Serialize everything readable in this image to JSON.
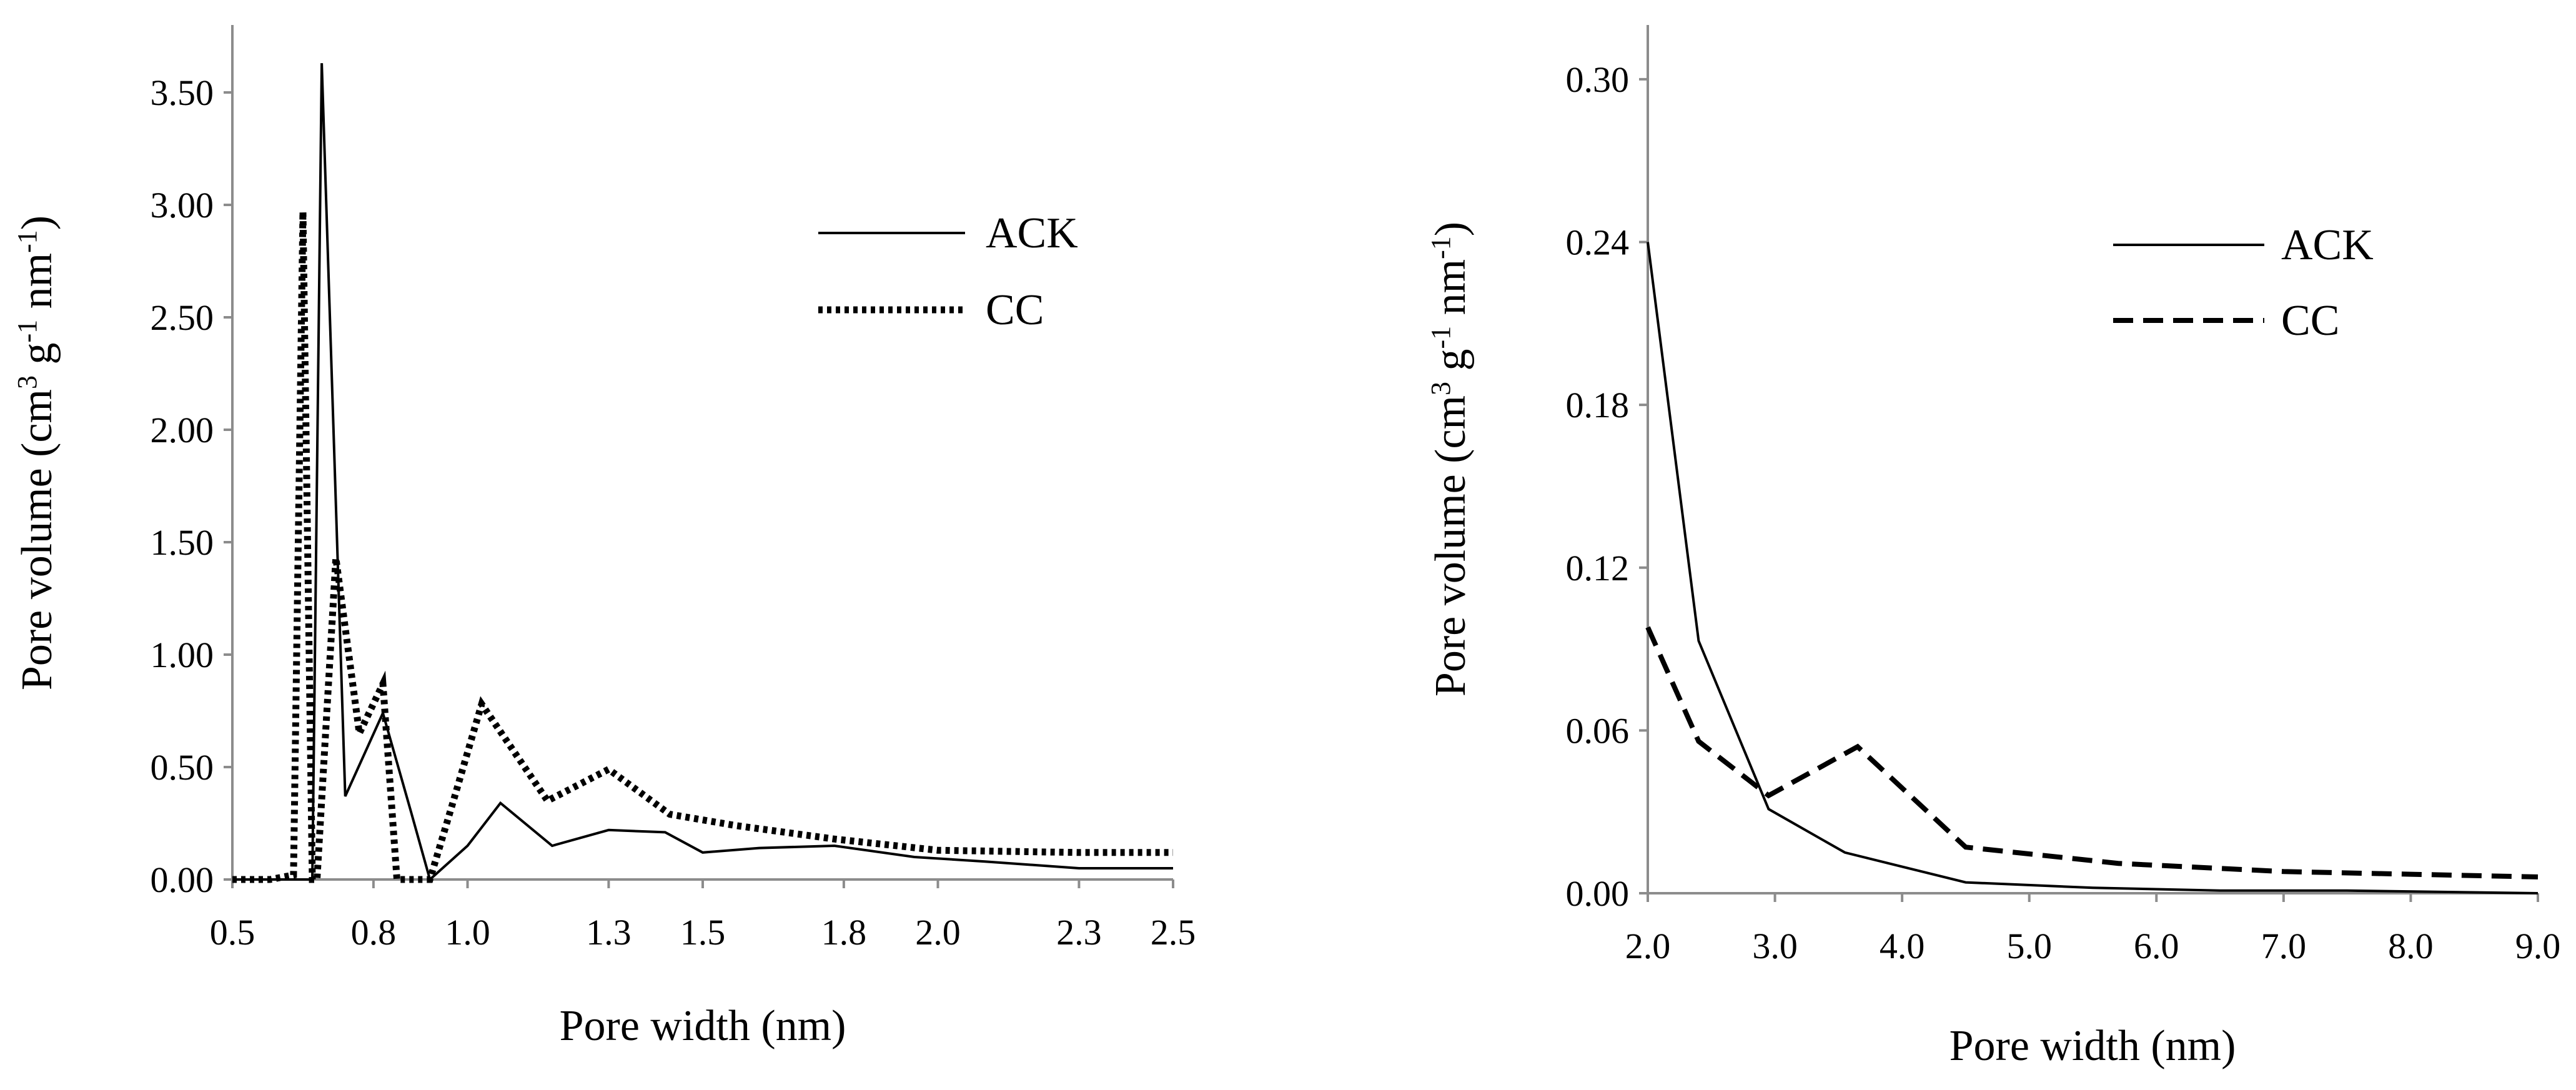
{
  "chart_data": [
    {
      "type": "line",
      "id": "micropore",
      "xlabel": "Pore width (nm)",
      "ylabel": "Pore volume (cm³ g⁻¹ nm⁻¹)",
      "ylabel_parts": {
        "a": "Pore volume (cm",
        "sup1": "3",
        "b": " g",
        "sup2": "-1",
        "c": " nm",
        "sup3": "-1",
        "d": ")"
      },
      "xlim": [
        0.5,
        2.5
      ],
      "ylim": [
        0.0,
        3.8
      ],
      "xticks": [
        0.5,
        0.8,
        1.0,
        1.3,
        1.5,
        1.8,
        2.0,
        2.3,
        2.5
      ],
      "xtick_labels": [
        "0.5",
        "0.8",
        "1.0",
        "1.3",
        "1.5",
        "1.8",
        "2.0",
        "2.3",
        "2.5"
      ],
      "yticks": [
        0.0,
        0.5,
        1.0,
        1.5,
        2.0,
        2.5,
        3.0,
        3.5
      ],
      "ytick_labels": [
        "0.00",
        "0.50",
        "1.00",
        "1.50",
        "2.00",
        "2.50",
        "3.00",
        "3.50"
      ],
      "legend_position": "top-right",
      "series": [
        {
          "name": "ACK",
          "style": "solid",
          "x": [
            0.5,
            0.67,
            0.67,
            0.69,
            0.74,
            0.82,
            0.88,
            0.92,
            1.0,
            1.07,
            1.18,
            1.3,
            1.42,
            1.5,
            1.62,
            1.78,
            1.95,
            2.1,
            2.3,
            2.5
          ],
          "y": [
            0.0,
            0.0,
            0.0,
            3.63,
            0.37,
            0.74,
            0.3,
            0.0,
            0.15,
            0.34,
            0.15,
            0.22,
            0.21,
            0.12,
            0.14,
            0.15,
            0.1,
            0.08,
            0.05,
            0.05
          ]
        },
        {
          "name": "CC",
          "style": "dotted",
          "x": [
            0.5,
            0.58,
            0.63,
            0.65,
            0.67,
            0.68,
            0.72,
            0.77,
            0.82,
            0.85,
            0.92,
            0.97,
            1.03,
            1.17,
            1.3,
            1.43,
            1.57,
            1.78,
            2.0,
            2.3,
            2.5
          ],
          "y": [
            0.0,
            0.0,
            0.02,
            2.97,
            0.0,
            0.0,
            1.43,
            0.65,
            0.87,
            0.0,
            0.0,
            0.35,
            0.78,
            0.35,
            0.49,
            0.29,
            0.24,
            0.18,
            0.13,
            0.12,
            0.12
          ]
        }
      ]
    },
    {
      "type": "line",
      "id": "mesopore",
      "xlabel": "Pore width (nm)",
      "ylabel": "Pore volume (cm³ g⁻¹ nm⁻¹)",
      "ylabel_parts": {
        "a": "Pore volume (cm",
        "sup1": "3",
        "b": " g",
        "sup2": "-1",
        "c": " nm",
        "sup3": "-1",
        "d": ")"
      },
      "xlim": [
        2.0,
        9.0
      ],
      "ylim": [
        0.0,
        0.32
      ],
      "xticks": [
        2.0,
        3.0,
        4.0,
        5.0,
        6.0,
        7.0,
        8.0,
        9.0
      ],
      "xtick_labels": [
        "2.0",
        "3.0",
        "4.0",
        "5.0",
        "6.0",
        "7.0",
        "8.0",
        "9.0"
      ],
      "yticks": [
        0.0,
        0.06,
        0.12,
        0.18,
        0.24,
        0.3
      ],
      "ytick_labels": [
        "0.00",
        "0.06",
        "0.12",
        "0.18",
        "0.24",
        "0.30"
      ],
      "legend_position": "top-right",
      "series": [
        {
          "name": "ACK",
          "style": "solid",
          "x": [
            2.0,
            2.4,
            2.95,
            3.55,
            4.5,
            5.5,
            6.5,
            7.5,
            9.0
          ],
          "y": [
            0.24,
            0.093,
            0.031,
            0.015,
            0.004,
            0.002,
            0.001,
            0.001,
            0.0
          ]
        },
        {
          "name": "CC",
          "style": "dashed",
          "x": [
            2.0,
            2.4,
            2.95,
            3.65,
            4.5,
            5.7,
            7.0,
            8.0,
            9.0
          ],
          "y": [
            0.098,
            0.056,
            0.036,
            0.054,
            0.017,
            0.011,
            0.008,
            0.007,
            0.006
          ]
        }
      ]
    }
  ]
}
